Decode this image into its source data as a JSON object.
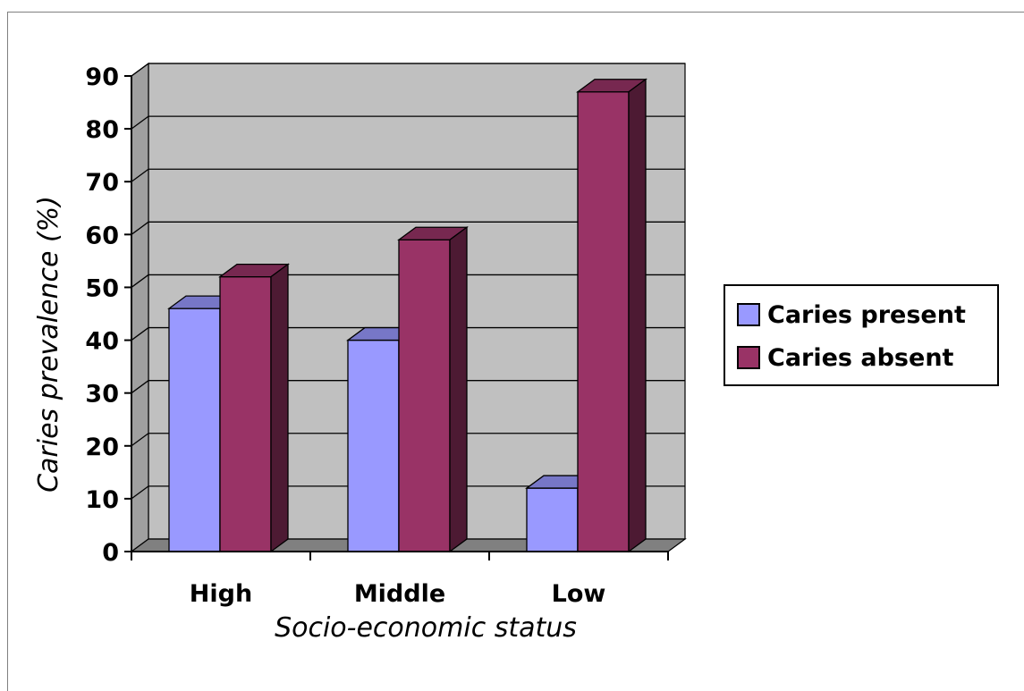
{
  "chart_data": {
    "type": "bar",
    "title": "",
    "xlabel": "Socio-economic status",
    "ylabel": "Caries prevalence (%)",
    "categories": [
      "High",
      "Middle",
      "Low"
    ],
    "series": [
      {
        "name": "Caries present",
        "values": [
          46,
          40,
          12
        ]
      },
      {
        "name": "Caries absent",
        "values": [
          52,
          59,
          87
        ]
      }
    ],
    "ylim": [
      0,
      90
    ],
    "yticks": [
      "0",
      "10",
      "20",
      "30",
      "40",
      "50",
      "60",
      "70",
      "80",
      "90"
    ],
    "grid": true,
    "legend_position": "right",
    "style_3d": true,
    "colors": {
      "caries_present": "#9999ff",
      "caries_absent": "#993366",
      "wall": "#c0c0c0",
      "floor": "#808080"
    }
  }
}
